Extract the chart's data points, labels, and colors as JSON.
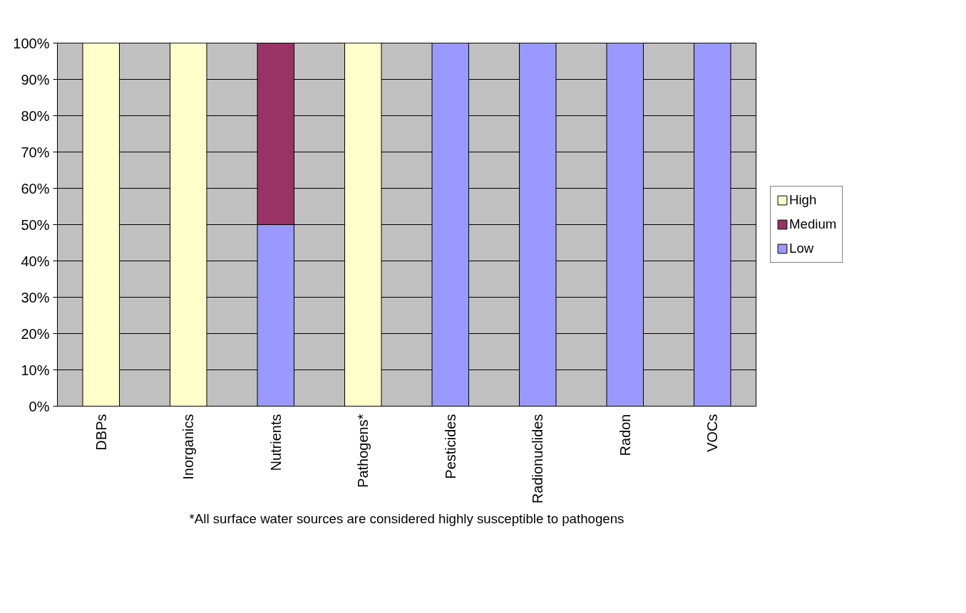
{
  "chart_data": {
    "type": "bar",
    "stacked": true,
    "categories": [
      "DBPs",
      "Inorganics",
      "Nutrients",
      "Pathogens*",
      "Pesticides",
      "Radionuclides",
      "Radon",
      "VOCs"
    ],
    "series": [
      {
        "name": "Low",
        "color": "#9999ff",
        "values": [
          null,
          null,
          50,
          null,
          100,
          100,
          100,
          100
        ]
      },
      {
        "name": "Medium",
        "color": "#993366",
        "values": [
          null,
          null,
          50,
          null,
          null,
          null,
          null,
          null
        ]
      },
      {
        "name": "High",
        "color": "#ffffcc",
        "values": [
          100,
          100,
          null,
          100,
          null,
          null,
          null,
          null
        ]
      }
    ],
    "ylim": [
      0,
      100
    ],
    "yticks": [
      {
        "value": 0,
        "label": "0%"
      },
      {
        "value": 10,
        "label": "10%"
      },
      {
        "value": 20,
        "label": "20%"
      },
      {
        "value": 30,
        "label": "30%"
      },
      {
        "value": 40,
        "label": "40%"
      },
      {
        "value": 50,
        "label": "50%"
      },
      {
        "value": 60,
        "label": "60%"
      },
      {
        "value": 70,
        "label": "70%"
      },
      {
        "value": 80,
        "label": "80%"
      },
      {
        "value": 90,
        "label": "90%"
      },
      {
        "value": 100,
        "label": "100%"
      }
    ],
    "grid": "y",
    "legend": "right",
    "annotations": [
      "*All surface water sources are considered highly susceptible to pathogens"
    ]
  }
}
